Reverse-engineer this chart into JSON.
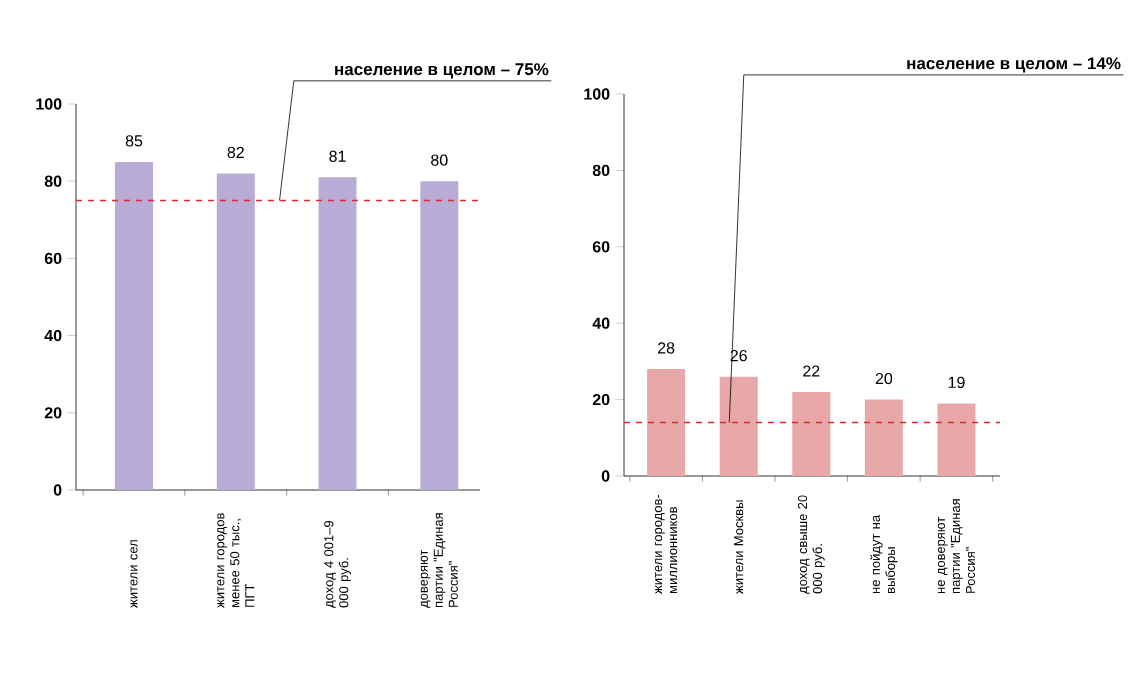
{
  "chart_data": [
    {
      "type": "bar",
      "categories": [
        "жители сел",
        "жители городов менее 50 тыс., ПГТ",
        "доход 4 001–9 000 руб.",
        "доверяют партии \"Единая Россия\""
      ],
      "values": [
        85,
        82,
        81,
        80
      ],
      "color": "#b8abd6",
      "data_labels": true,
      "ylim": [
        0,
        100
      ],
      "yticks": [
        0,
        20,
        40,
        60,
        80,
        100
      ],
      "ref_lines": [
        {
          "axis": "y",
          "value": 75,
          "label": "население в целом – 75%",
          "color": "#e5262b",
          "line_style": "dashed"
        }
      ]
    },
    {
      "type": "bar",
      "categories": [
        "жители городов-миллионников",
        "жители Москвы",
        "доход свыше 20 000 руб.",
        "не пойдут на выборы",
        "не доверяют партии \"Единая Россия\""
      ],
      "values": [
        28,
        26,
        22,
        20,
        19
      ],
      "color": "#e8a8aa",
      "data_labels": true,
      "ylim": [
        0,
        100
      ],
      "yticks": [
        0,
        20,
        40,
        60,
        80,
        100
      ],
      "ref_lines": [
        {
          "axis": "y",
          "value": 14,
          "label": "население в целом – 14%",
          "color": "#e5262b",
          "line_style": "dashed"
        }
      ]
    }
  ]
}
